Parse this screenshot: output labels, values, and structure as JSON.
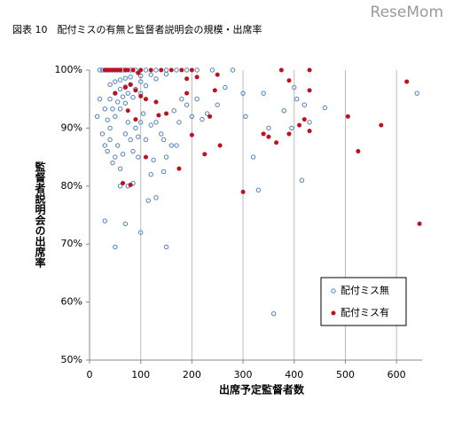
{
  "chart_data": {
    "type": "scatter",
    "title": "図表 10　配付ミスの有無と監督者説明会の規模・出席率",
    "watermark": "ReseMom",
    "x_label": "出席予定監督者数",
    "y_label": "監督者説明会の出席率",
    "xlim": [
      0,
      650
    ],
    "ylim": [
      50,
      100
    ],
    "xticks": [
      0,
      100,
      200,
      300,
      400,
      500,
      600
    ],
    "yticks": [
      {
        "value": 50,
        "label": "50%"
      },
      {
        "value": 60,
        "label": "60%"
      },
      {
        "value": 70,
        "label": "70%"
      },
      {
        "value": 80,
        "label": "80%"
      },
      {
        "value": 90,
        "label": "90%"
      },
      {
        "value": 100,
        "label": "100%"
      }
    ],
    "grid": "x",
    "legend": "lower right",
    "series": [
      {
        "name": "配付ミス無",
        "color": "#4f81bd",
        "x": [
          20,
          25,
          30,
          35,
          40,
          45,
          50,
          55,
          60,
          65,
          70,
          80,
          90,
          110,
          130,
          150,
          170,
          190,
          210,
          240,
          280,
          40,
          50,
          60,
          70,
          80,
          100,
          120,
          150,
          30,
          40,
          50,
          60,
          70,
          80,
          100,
          130,
          35,
          45,
          55,
          65,
          75,
          90,
          110,
          40,
          50,
          60,
          70,
          85,
          100,
          15,
          20,
          25,
          30,
          35,
          40,
          45,
          50,
          55,
          60,
          65,
          70,
          75,
          80,
          85,
          90,
          95,
          100,
          105,
          110,
          120,
          125,
          130,
          140,
          145,
          150,
          160,
          165,
          175,
          180,
          190,
          200,
          210,
          220,
          230,
          250,
          265,
          300,
          305,
          320,
          340,
          350,
          380,
          395,
          400,
          405,
          415,
          420,
          430,
          460,
          640,
          30,
          50,
          70,
          75,
          100,
          115,
          130,
          150,
          330,
          360,
          85,
          60,
          145,
          170,
          95,
          120
        ],
        "values": [
          100,
          100,
          100,
          100,
          100,
          100,
          100,
          100,
          100,
          100,
          100,
          100,
          100,
          100,
          100,
          100,
          100,
          100,
          100,
          100,
          100,
          97.5,
          98,
          98.3,
          98.6,
          98.8,
          99,
          99.2,
          99.3,
          93.3,
          95,
          96,
          96.7,
          97.1,
          97.5,
          98,
          98.5,
          91.4,
          93.3,
          94.5,
          95.4,
          96,
          96.7,
          97.3,
          90,
          92,
          93.3,
          94.3,
          95.3,
          96,
          92,
          95,
          89,
          87,
          86,
          88,
          84,
          85,
          87,
          83,
          85.5,
          89,
          91,
          88,
          86,
          90,
          88.5,
          91,
          92.5,
          88,
          90.5,
          84.5,
          91,
          89,
          88,
          85,
          87,
          93,
          91,
          95,
          94,
          92,
          95,
          91.5,
          92.5,
          94,
          97,
          96,
          92,
          85,
          96,
          90,
          93,
          90,
          97,
          95,
          81,
          94,
          91,
          93.5,
          96,
          74,
          69.5,
          73.5,
          80,
          72,
          77.5,
          78,
          69.5,
          79.3,
          58,
          80.5,
          80,
          82.5,
          87,
          85,
          82
        ]
      },
      {
        "name": "配付ミス有",
        "color": "#c0101f",
        "x": [
          30,
          35,
          40,
          45,
          50,
          55,
          60,
          70,
          75,
          85,
          100,
          120,
          140,
          160,
          180,
          200,
          375,
          430,
          95,
          190,
          210,
          250,
          390,
          620,
          50,
          70,
          80,
          90,
          100,
          110,
          130,
          190,
          245,
          430,
          75,
          90,
          150,
          135,
          235,
          420,
          340,
          350,
          365,
          390,
          410,
          430,
          505,
          570,
          525,
          225,
          255,
          175,
          300,
          65,
          80,
          110,
          645,
          200
        ],
        "values": [
          100,
          100,
          100,
          100,
          100,
          100,
          100,
          100,
          100,
          100,
          100,
          100,
          100,
          100,
          100,
          100,
          100,
          100,
          99.5,
          98.5,
          98.8,
          99.2,
          98.2,
          98,
          96,
          97,
          97.5,
          96.5,
          95.5,
          95,
          94.5,
          96,
          96.5,
          96.5,
          93,
          91.5,
          92.5,
          92.2,
          92,
          91.5,
          89,
          88.5,
          87.5,
          89,
          90.5,
          89.5,
          92,
          90.5,
          86,
          85.5,
          87,
          83,
          79,
          80.5,
          80.2,
          85,
          73.5,
          88.8
        ]
      }
    ]
  }
}
